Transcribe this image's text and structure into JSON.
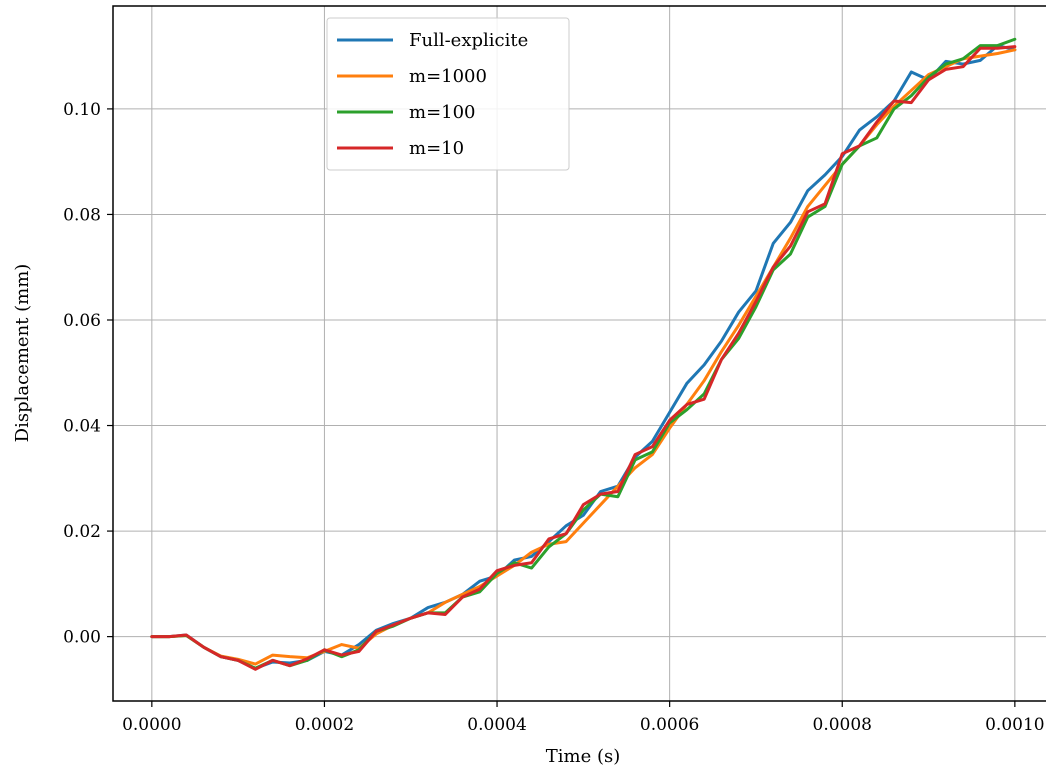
{
  "chart_data": {
    "type": "line",
    "title": "",
    "xlabel": "Time (s)",
    "ylabel": "Displacement (mm)",
    "xlim": [
      -4.5e-05,
      0.00105
    ],
    "ylim": [
      -0.0122,
      0.1195
    ],
    "grid": true,
    "legend_position": "top-center",
    "xticks": [
      0.0,
      0.0002,
      0.0004,
      0.0006,
      0.0008,
      0.001
    ],
    "xtick_labels": [
      "0.0000",
      "0.0002",
      "0.0004",
      "0.0006",
      "0.0008",
      "0.0010"
    ],
    "yticks": [
      0.0,
      0.02,
      0.04,
      0.06,
      0.08,
      0.1
    ],
    "ytick_labels": [
      "0.00",
      "0.02",
      "0.04",
      "0.06",
      "0.08",
      "0.10"
    ],
    "x": [
      0.0,
      2e-05,
      4e-05,
      6e-05,
      8e-05,
      0.0001,
      0.00012,
      0.00014,
      0.00016,
      0.00018,
      0.0002,
      0.00022,
      0.00024,
      0.00026,
      0.00028,
      0.0003,
      0.00032,
      0.00034,
      0.00036,
      0.00038,
      0.0004,
      0.00042,
      0.00044,
      0.00046,
      0.00048,
      0.0005,
      0.00052,
      0.00054,
      0.00056,
      0.00058,
      0.0006,
      0.00062,
      0.00064,
      0.00066,
      0.00068,
      0.0007,
      0.00072,
      0.00074,
      0.00076,
      0.00078,
      0.0008,
      0.00082,
      0.00084,
      0.00086,
      0.00088,
      0.0009,
      0.00092,
      0.00094,
      0.00096,
      0.00098,
      0.001
    ],
    "series": [
      {
        "name": "Full-explicite",
        "color": "#1f77b4",
        "values": [
          0.0,
          0.0,
          0.0003,
          -0.002,
          -0.0038,
          -0.0045,
          -0.006,
          -0.0048,
          -0.005,
          -0.0045,
          -0.0028,
          -0.0035,
          -0.0015,
          0.0012,
          0.0025,
          0.0035,
          0.0055,
          0.0065,
          0.008,
          0.0105,
          0.0115,
          0.0145,
          0.0152,
          0.018,
          0.021,
          0.023,
          0.0275,
          0.0285,
          0.034,
          0.037,
          0.0425,
          0.048,
          0.0515,
          0.056,
          0.0615,
          0.0655,
          0.0745,
          0.0785,
          0.0845,
          0.0875,
          0.091,
          0.096,
          0.0985,
          0.1015,
          0.107,
          0.1055,
          0.109,
          0.1085,
          0.1092,
          0.112,
          0.1112
        ]
      },
      {
        "name": "m=1000",
        "color": "#ff7f0e",
        "values": [
          0.0,
          0.0,
          0.0002,
          -0.002,
          -0.0037,
          -0.0043,
          -0.0052,
          -0.0035,
          -0.0038,
          -0.004,
          -0.0028,
          -0.0015,
          -0.0022,
          0.0005,
          0.0022,
          0.0035,
          0.0045,
          0.0065,
          0.008,
          0.0095,
          0.0115,
          0.0135,
          0.016,
          0.0175,
          0.018,
          0.0215,
          0.025,
          0.0285,
          0.032,
          0.0345,
          0.0395,
          0.044,
          0.0485,
          0.054,
          0.059,
          0.0645,
          0.07,
          0.0755,
          0.0815,
          0.0855,
          0.0895,
          0.093,
          0.097,
          0.1005,
          0.1035,
          0.1065,
          0.108,
          0.1095,
          0.11,
          0.1105,
          0.1112
        ]
      },
      {
        "name": "m=100",
        "color": "#2ca02c",
        "values": [
          0.0,
          0.0,
          0.0002,
          -0.002,
          -0.0038,
          -0.0045,
          -0.006,
          -0.0045,
          -0.0055,
          -0.0045,
          -0.0025,
          -0.0038,
          -0.0025,
          0.001,
          0.002,
          0.0035,
          0.0045,
          0.0045,
          0.0075,
          0.0085,
          0.012,
          0.014,
          0.013,
          0.017,
          0.0195,
          0.024,
          0.027,
          0.0265,
          0.0335,
          0.035,
          0.0405,
          0.043,
          0.046,
          0.0525,
          0.0565,
          0.0625,
          0.0695,
          0.0725,
          0.0795,
          0.0815,
          0.0895,
          0.093,
          0.0945,
          0.1,
          0.1025,
          0.106,
          0.1085,
          0.1095,
          0.112,
          0.112,
          0.1132
        ]
      },
      {
        "name": "m=10",
        "color": "#d62728",
        "values": [
          0.0,
          0.0,
          0.0003,
          -0.002,
          -0.0038,
          -0.0045,
          -0.0062,
          -0.0045,
          -0.0055,
          -0.0042,
          -0.0025,
          -0.0035,
          -0.0028,
          0.001,
          0.0022,
          0.0035,
          0.0045,
          0.0042,
          0.0075,
          0.009,
          0.0125,
          0.0135,
          0.014,
          0.0185,
          0.0195,
          0.025,
          0.027,
          0.0275,
          0.0345,
          0.036,
          0.041,
          0.044,
          0.045,
          0.0525,
          0.0575,
          0.0635,
          0.07,
          0.074,
          0.0805,
          0.082,
          0.0915,
          0.093,
          0.0975,
          0.1015,
          0.1012,
          0.1055,
          0.1075,
          0.108,
          0.1115,
          0.1115,
          0.1118
        ]
      }
    ]
  }
}
